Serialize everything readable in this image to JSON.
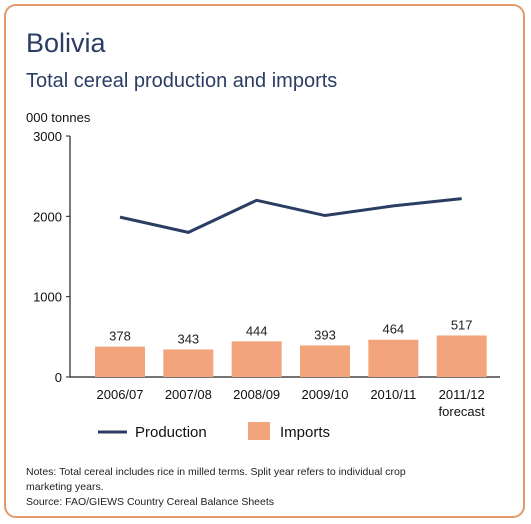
{
  "header": {
    "country": "Bolivia",
    "subtitle": "Total cereal production and imports"
  },
  "chart_data": {
    "type": "bar",
    "categories": [
      "2006/07",
      "2007/08",
      "2008/09",
      "2009/10",
      "2010/11",
      "2011/12"
    ],
    "category_sublabels": [
      "",
      "",
      "",
      "",
      "",
      "forecast"
    ],
    "ylabel": "000 tonnes",
    "ylim": [
      0,
      3000
    ],
    "yticks": [
      0,
      1000,
      2000,
      3000
    ],
    "series": [
      {
        "name": "Production",
        "type": "line",
        "color": "#2b3d63",
        "values": [
          1990,
          1800,
          2200,
          2010,
          2130,
          2220
        ]
      },
      {
        "name": "Imports",
        "type": "bar",
        "color": "#f2a57c",
        "values": [
          378,
          343,
          444,
          393,
          464,
          517
        ],
        "labels": [
          "378",
          "343",
          "444",
          "393",
          "464",
          "517"
        ]
      }
    ],
    "legend_position": "bottom-left",
    "grid": false
  },
  "footer": {
    "notes_line1": "Notes: Total cereal includes rice in milled terms. Split year refers to individual crop",
    "notes_line2": "marketing years.",
    "source": "Source: FAO/GIEWS Country Cereal Balance Sheets"
  }
}
